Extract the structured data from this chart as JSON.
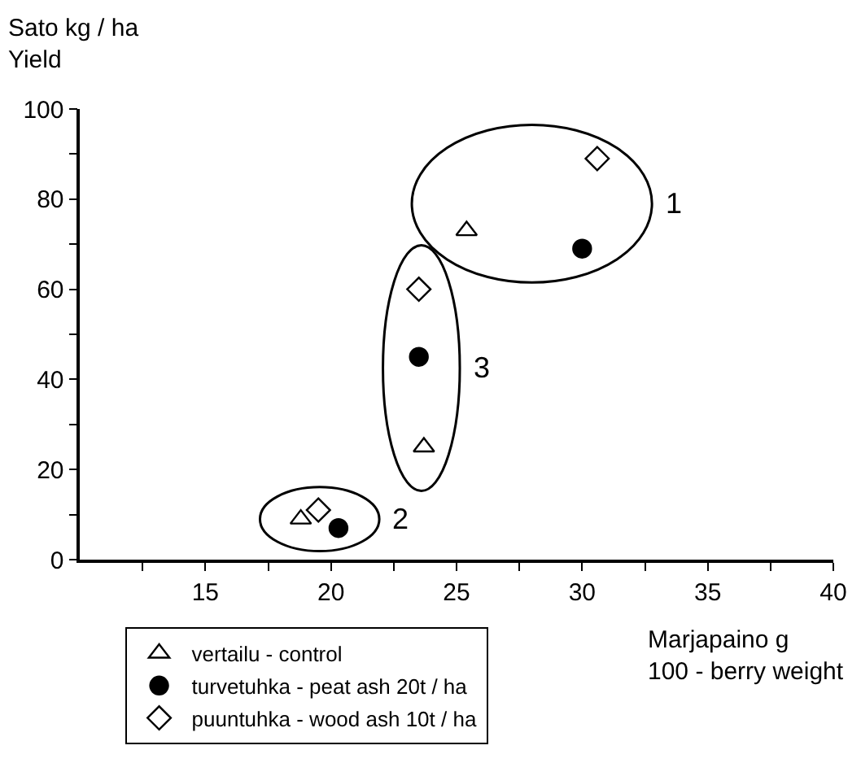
{
  "chart_data": {
    "type": "scatter",
    "ylabel": "Sato kg / ha\nYield",
    "xlabel": "Marjapaino g\n100 - berry weight",
    "xlim": [
      10,
      40
    ],
    "xticks": [
      {
        "value": 12.5,
        "label": null
      },
      15,
      {
        "value": 17.5,
        "label": null
      },
      20,
      {
        "value": 22.5,
        "label": null
      },
      25,
      {
        "value": 27.5,
        "label": null
      },
      30,
      {
        "value": 32.5,
        "label": null
      },
      35,
      {
        "value": 37.5,
        "label": null
      },
      40
    ],
    "ylim": [
      0,
      100
    ],
    "yticks": [
      0,
      {
        "value": 10,
        "label": null
      },
      20,
      {
        "value": 30,
        "label": null
      },
      40,
      {
        "value": 50,
        "label": null
      },
      60,
      {
        "value": 70,
        "label": null
      },
      80,
      {
        "value": 90,
        "label": null
      },
      100
    ],
    "grid": false,
    "legend": "bottom left",
    "series": [
      {
        "name": "vertailu - control",
        "color": "#000000",
        "marker": "triangle",
        "x": [
          25.4,
          23.7,
          18.8
        ],
        "values": [
          73,
          25,
          9
        ]
      },
      {
        "name": "turvetuhka - peat ash 20t / ha",
        "color": "#000000",
        "marker": "circle",
        "x": [
          30.0,
          23.5,
          20.3
        ],
        "values": [
          69,
          45,
          7
        ]
      },
      {
        "name": "puuntuhka - wood ash 10t / ha",
        "color": "#000000",
        "marker": "diamond",
        "x": [
          30.6,
          23.5,
          19.5
        ],
        "values": [
          89,
          60,
          11
        ]
      }
    ],
    "annotations": [
      "1",
      "3",
      "2"
    ]
  }
}
